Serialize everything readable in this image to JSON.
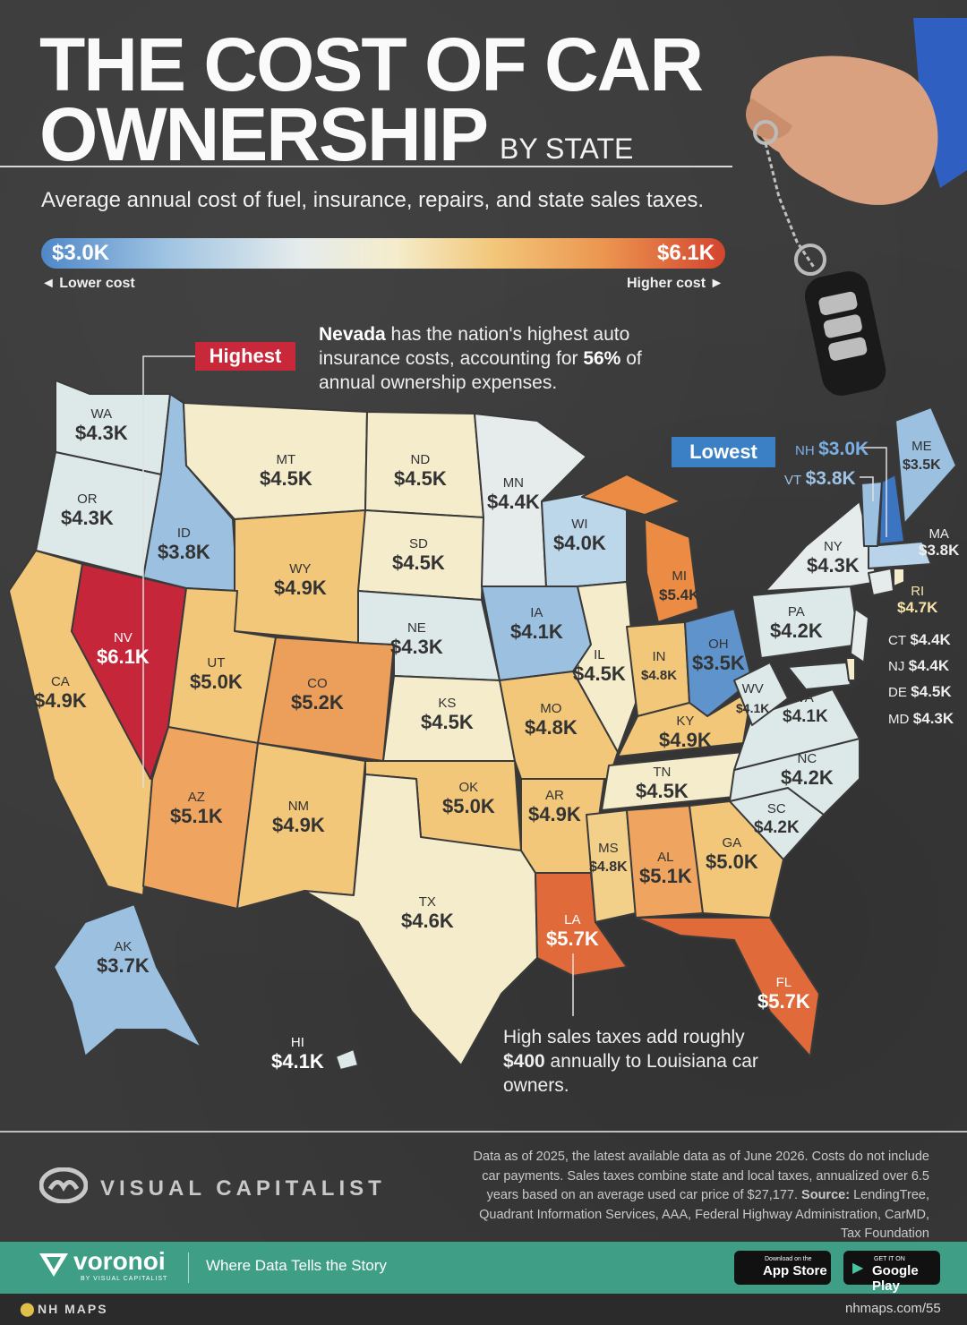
{
  "title_line1": "THE COST OF CAR",
  "title_line2": "OWNERSHIP",
  "title_suffix": "BY STATE",
  "subtitle": "Average annual cost of fuel, insurance, repairs, and state sales taxes.",
  "legend": {
    "min_label": "$3.0K",
    "max_label": "$6.1K",
    "lower_label": "◄ Lower cost",
    "higher_label": "Higher cost ►",
    "colors": [
      "#4f88c8",
      "#e6ecec",
      "#f4eccb",
      "#ec9650",
      "#d3452f"
    ]
  },
  "callouts": {
    "highest_label": "Highest",
    "highest_note_bold": "Nevada",
    "highest_note_rest": " has the nation's highest auto insurance costs, accounting for ",
    "highest_note_pct": "56%",
    "highest_note_end": " of annual ownership expenses.",
    "lowest_label": "Lowest",
    "louisiana_note_a": "High sales taxes add roughly ",
    "louisiana_note_bold": "$400",
    "louisiana_note_b": " annually to Louisiana car owners."
  },
  "states": [
    {
      "abbr": "WA",
      "value": "$4.3K"
    },
    {
      "abbr": "OR",
      "value": "$4.3K"
    },
    {
      "abbr": "CA",
      "value": "$4.9K"
    },
    {
      "abbr": "NV",
      "value": "$6.1K"
    },
    {
      "abbr": "ID",
      "value": "$3.8K"
    },
    {
      "abbr": "MT",
      "value": "$4.5K"
    },
    {
      "abbr": "WY",
      "value": "$4.9K"
    },
    {
      "abbr": "UT",
      "value": "$5.0K"
    },
    {
      "abbr": "AZ",
      "value": "$5.1K"
    },
    {
      "abbr": "CO",
      "value": "$5.2K"
    },
    {
      "abbr": "NM",
      "value": "$4.9K"
    },
    {
      "abbr": "ND",
      "value": "$4.5K"
    },
    {
      "abbr": "SD",
      "value": "$4.5K"
    },
    {
      "abbr": "NE",
      "value": "$4.3K"
    },
    {
      "abbr": "KS",
      "value": "$4.5K"
    },
    {
      "abbr": "OK",
      "value": "$5.0K"
    },
    {
      "abbr": "TX",
      "value": "$4.6K"
    },
    {
      "abbr": "MN",
      "value": "$4.4K"
    },
    {
      "abbr": "IA",
      "value": "$4.1K"
    },
    {
      "abbr": "MO",
      "value": "$4.8K"
    },
    {
      "abbr": "AR",
      "value": "$4.9K"
    },
    {
      "abbr": "LA",
      "value": "$5.7K"
    },
    {
      "abbr": "WI",
      "value": "$4.0K"
    },
    {
      "abbr": "IL",
      "value": "$4.5K"
    },
    {
      "abbr": "MI",
      "value": "$5.4K"
    },
    {
      "abbr": "IN",
      "value": "$4.8K"
    },
    {
      "abbr": "OH",
      "value": "$3.5K"
    },
    {
      "abbr": "KY",
      "value": "$4.9K"
    },
    {
      "abbr": "TN",
      "value": "$4.5K"
    },
    {
      "abbr": "MS",
      "value": "$4.8K"
    },
    {
      "abbr": "AL",
      "value": "$5.1K"
    },
    {
      "abbr": "GA",
      "value": "$5.0K"
    },
    {
      "abbr": "FL",
      "value": "$5.7K"
    },
    {
      "abbr": "SC",
      "value": "$4.2K"
    },
    {
      "abbr": "NC",
      "value": "$4.2K"
    },
    {
      "abbr": "VA",
      "value": "$4.1K"
    },
    {
      "abbr": "WV",
      "value": "$4.1K"
    },
    {
      "abbr": "PA",
      "value": "$4.2K"
    },
    {
      "abbr": "NY",
      "value": "$4.3K"
    },
    {
      "abbr": "ME",
      "value": "$3.5K"
    },
    {
      "abbr": "MA",
      "value": "$3.8K"
    },
    {
      "abbr": "AK",
      "value": "$3.7K"
    },
    {
      "abbr": "HI",
      "value": "$4.1K"
    },
    {
      "abbr": "NH",
      "value": "$3.0K"
    },
    {
      "abbr": "VT",
      "value": "$3.8K"
    },
    {
      "abbr": "RI",
      "value": "$4.7K"
    },
    {
      "abbr": "CT",
      "value": "$4.4K"
    },
    {
      "abbr": "NJ",
      "value": "$4.4K"
    },
    {
      "abbr": "DE",
      "value": "$4.5K"
    },
    {
      "abbr": "MD",
      "value": "$4.3K"
    }
  ],
  "footer": {
    "brand": "VISUAL CAPITALIST",
    "disclaimer_a": "Data as of 2025, the latest available data as of June 2026. Costs do not include car payments. Sales taxes combine state and local taxes, annualized over 6.5 years based on an average used car price of $27,177. ",
    "disclaimer_source_label": "Source:",
    "disclaimer_source": " LendingTree, Quadrant Information Services, AAA, Federal Highway Administration, CarMD, Tax Foundation",
    "voronoi": "voronoi",
    "voronoi_sub": "BY VISUAL CAPITALIST",
    "tagline": "Where Data Tells the Story",
    "appstore_small": "Download on the",
    "appstore_large": "App Store",
    "googleplay_small": "GET IT ON",
    "googleplay_large": "Google Play",
    "nhmaps": "NH MAPS",
    "nhurl": "nhmaps.com/55"
  }
}
